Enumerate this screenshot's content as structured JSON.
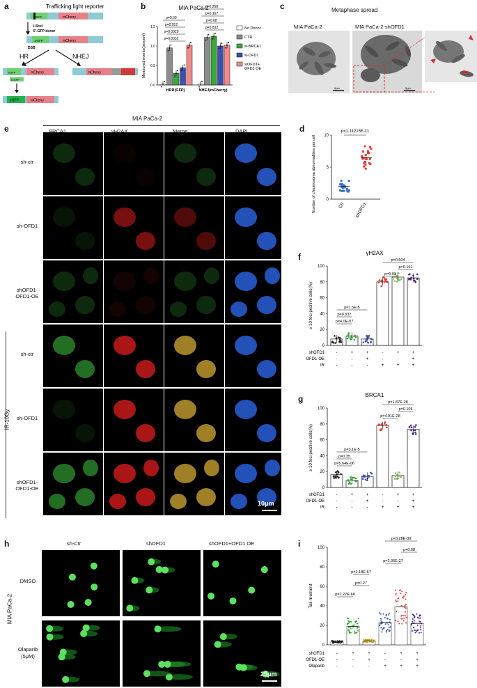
{
  "panel_letters": {
    "a": "a",
    "b": "b",
    "c": "c",
    "d": "d",
    "e": "e",
    "f": "f",
    "g": "g",
    "h": "h",
    "i": "i"
  },
  "panel_a": {
    "title": "Trafficking light reporter",
    "egfp": "eGFP",
    "mcherry": "mCherry",
    "isce": "I-SceI",
    "donor": "5'-GFP donor",
    "dsb": "DSB",
    "hr": "HR",
    "nhej": "NHEJ",
    "five_gfp": "5-GFP",
    "gfp": "eGFP",
    "colors": {
      "gfp": "#6fcf74",
      "mcherry": "#e8808a",
      "teal": "#8ecbd4",
      "green_bright": "#22b14c"
    }
  },
  "panel_b": {
    "title": "MIA PaCa-2",
    "chart_data": {
      "type": "bar",
      "categories": [
        "HRR(GFP)",
        "NHEJ(mCherry)"
      ],
      "ylabel": "Measured events(percent)",
      "ylim": [
        0,
        1.5
      ],
      "yticks": [
        "0.0",
        "0.5",
        "1.0",
        "1.5"
      ],
      "series": [
        {
          "name": "No Donor",
          "color": "#ffffff",
          "values": [
            0.02,
            0.02
          ]
        },
        {
          "name": "CTR",
          "color": "#8c8c8c",
          "values": [
            0.95,
            1.22
          ]
        },
        {
          "name": "si-BRCA1",
          "color": "#3aa83a",
          "values": [
            0.3,
            1.25
          ]
        },
        {
          "name": "si-OFD1",
          "color": "#3f4fb0",
          "values": [
            0.44,
            1.0
          ]
        },
        {
          "name": "siOFD1+\nOFD1 OE",
          "color": "#f08a8a",
          "values": [
            1.02,
            1.02
          ]
        }
      ],
      "pvalues_hrr": [
        "p=0.59",
        "p=0.012",
        "p=0.0029",
        "p=0.0032"
      ],
      "pvalues_nhej": [
        "p=0.268",
        "p=0.167",
        "p=0.68",
        "p=0.832"
      ]
    }
  },
  "panel_c": {
    "title": "Metaphase spread",
    "left": "MIA PaCa-2",
    "right": "MIA PaCa-2-shOFD1",
    "scale": "5μm",
    "scale2": "5μm"
  },
  "panel_d": {
    "pvalue": "p=1.11215E-11",
    "chart_data": {
      "type": "scatter",
      "categories": [
        "Ctr",
        "shOFD1"
      ],
      "ylabel": "Number of chromosoma abnormalities per cell",
      "ylim": [
        0,
        10
      ],
      "yticks": [
        "0",
        "5",
        "10"
      ],
      "means": [
        2.0,
        6.5
      ],
      "sd": [
        0.8,
        1.6
      ],
      "colors": [
        "#3a6fd8",
        "#e03a3a"
      ]
    }
  },
  "panel_e": {
    "cell_line": "MIA PaCa-2",
    "columns": [
      "BRCA1",
      "γH2AX",
      "Merge",
      "DAPI"
    ],
    "rows": [
      "sh-ctr",
      "sh-OFD1",
      "shOFD1-\nOFD1-OE",
      "sh-ctr",
      "sh-OFD1",
      "shOFD1-\nOFD1-OE"
    ],
    "ir_label": "IR-10Gy",
    "scale": "10μm"
  },
  "panel_f": {
    "title": "γH2AX",
    "chart_data": {
      "type": "bar",
      "ylabel": "≥ 10 foci positive cells(%)",
      "ylim": [
        0,
        100
      ],
      "yticks": [
        "0",
        "20",
        "40",
        "60",
        "80",
        "100"
      ],
      "values": [
        8,
        12,
        8,
        80,
        86,
        85
      ],
      "colors": [
        "#222222",
        "#3aa83a",
        "#3f4fb0",
        "#e03a3a",
        "#8fbf6a",
        "#4a2a8a"
      ],
      "pvalues": [
        "p=0.604",
        "p=0.161",
        "p=0.03",
        "p=1.5E-5",
        "p=0.937",
        "p=4.0E-07"
      ],
      "rows": {
        "labels": [
          "shOFD1",
          "OFD1-OE",
          "IR"
        ],
        "values": [
          [
            "-",
            "+",
            "+",
            "-",
            "+",
            "+"
          ],
          [
            "-",
            "-",
            "+",
            "-",
            "-",
            "+"
          ],
          [
            "-",
            "-",
            "-",
            "+",
            "+",
            "+"
          ]
        ]
      }
    }
  },
  "panel_g": {
    "title": "BRCA1",
    "chart_data": {
      "type": "bar",
      "ylabel": "≥ 10 foci positive cells(%)",
      "ylim": [
        0,
        100
      ],
      "yticks": [
        "0",
        "20",
        "40",
        "60",
        "80",
        "100"
      ],
      "values": [
        16,
        9,
        14,
        78,
        15,
        73
      ],
      "colors": [
        "#222222",
        "#3aa83a",
        "#3f4fb0",
        "#e03a3a",
        "#8fbf6a",
        "#4a2a8a"
      ],
      "pvalues": [
        "p=1.87E-28",
        "p=0.106",
        "p=4.91E-28",
        "p=3.1E-5",
        "p=0.35",
        "p=5.64E-06"
      ],
      "rows": {
        "labels": [
          "shOFD1",
          "OFD1-OE",
          "IR"
        ],
        "values": [
          [
            "-",
            "+",
            "+",
            "-",
            "+",
            "+"
          ],
          [
            "-",
            "-",
            "+",
            "-",
            "-",
            "+"
          ],
          [
            "-",
            "-",
            "-",
            "+",
            "+",
            "+"
          ]
        ]
      }
    }
  },
  "panel_h": {
    "columns": [
      "sh-Ctr",
      "shOFD1",
      "shOFD1+OFD1 OE"
    ],
    "rows": [
      "DMSO",
      "Olaparib\n(5μM)"
    ],
    "cell_line": "MIA PaCa-2",
    "scale": "25μm"
  },
  "panel_i": {
    "chart_data": {
      "type": "scatter",
      "ylabel": "Tail moment",
      "ylim": [
        0,
        100
      ],
      "yticks": [
        "0",
        "20",
        "40",
        "60",
        "80",
        "100"
      ],
      "means": [
        3,
        19,
        4,
        23,
        39,
        22
      ],
      "colors": [
        "#222222",
        "#3aa83a",
        "#c9a020",
        "#3f4fb0",
        "#e03a3a",
        "#4a2a8a"
      ],
      "pvalues": [
        "p=3.28E-30",
        "p=0.08",
        "p=2.36E-27",
        "p=2.18E-67",
        "p=0.27",
        "p=2.27E-68"
      ],
      "rows": {
        "labels": [
          "shOFD1",
          "OFD1-OE",
          "Olaparib"
        ],
        "values": [
          [
            "-",
            "+",
            "+",
            "-",
            "+",
            "+"
          ],
          [
            "-",
            "-",
            "+",
            "-",
            "-",
            "+"
          ],
          [
            "-",
            "-",
            "-",
            "+",
            "+",
            "+"
          ]
        ]
      }
    }
  }
}
